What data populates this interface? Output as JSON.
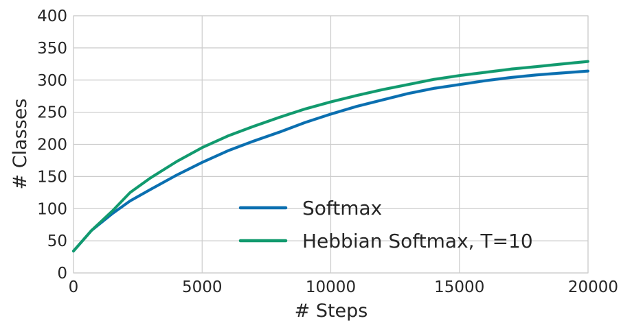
{
  "chart_data": {
    "type": "line",
    "xlabel": "# Steps",
    "ylabel": "# Classes",
    "xlim": [
      0,
      20000
    ],
    "ylim": [
      0,
      400
    ],
    "xticks": [
      0,
      5000,
      10000,
      15000,
      20000
    ],
    "yticks": [
      0,
      50,
      100,
      150,
      200,
      250,
      300,
      350,
      400
    ],
    "xtick_labels": [
      "0",
      "5000",
      "10000",
      "15000",
      "20000"
    ],
    "ytick_labels": [
      "0",
      "50",
      "100",
      "150",
      "200",
      "250",
      "300",
      "350",
      "400"
    ],
    "grid": true,
    "legend_position": "lower-right",
    "series": [
      {
        "name": "Softmax",
        "color": "#0a6fb0",
        "x": [
          0,
          700,
          1500,
          2200,
          3000,
          4000,
          5000,
          6000,
          7000,
          8000,
          9000,
          10000,
          11000,
          12000,
          13000,
          14000,
          15000,
          16000,
          17000,
          18000,
          19000,
          20000
        ],
        "y": [
          34,
          66,
          92,
          112,
          130,
          152,
          172,
          190,
          205,
          219,
          234,
          247,
          259,
          269,
          279,
          287,
          293,
          299,
          304,
          308,
          311,
          314
        ]
      },
      {
        "name": "Hebbian Softmax, T=10",
        "color": "#119a6e",
        "x": [
          0,
          700,
          1500,
          2200,
          3000,
          4000,
          5000,
          6000,
          7000,
          8000,
          9000,
          10000,
          11000,
          12000,
          13000,
          14000,
          15000,
          16000,
          17000,
          18000,
          19000,
          20000
        ],
        "y": [
          34,
          66,
          96,
          125,
          148,
          173,
          195,
          213,
          228,
          242,
          255,
          266,
          276,
          285,
          293,
          301,
          307,
          312,
          317,
          321,
          325,
          329
        ]
      }
    ]
  }
}
